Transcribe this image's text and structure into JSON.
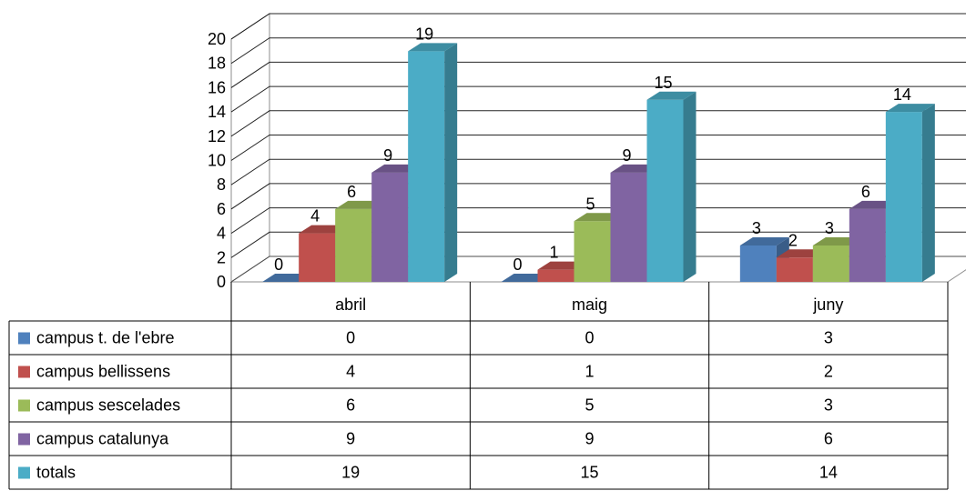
{
  "chart_data": {
    "type": "bar",
    "categories": [
      "abril",
      "maig",
      "juny"
    ],
    "series": [
      {
        "name": "campus t. de l'ebre",
        "values": [
          0,
          0,
          3
        ],
        "color": "#4F81BD"
      },
      {
        "name": "campus bellissens",
        "values": [
          4,
          1,
          2
        ],
        "color": "#C0504D"
      },
      {
        "name": "campus sescelades",
        "values": [
          6,
          5,
          3
        ],
        "color": "#9BBB59"
      },
      {
        "name": "campus catalunya",
        "values": [
          9,
          9,
          6
        ],
        "color": "#8064A2"
      },
      {
        "name": "totals",
        "values": [
          19,
          15,
          14
        ],
        "color": "#4BACC6"
      }
    ],
    "yticks": [
      0,
      2,
      4,
      6,
      8,
      10,
      12,
      14,
      16,
      18,
      20
    ],
    "ylim": [
      0,
      20
    ],
    "grid": true,
    "legend": "data-table-below",
    "three_d": true
  }
}
